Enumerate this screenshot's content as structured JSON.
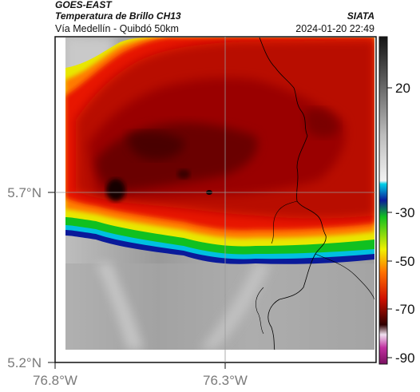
{
  "header": {
    "satellite": "GOES-EAST",
    "product": "Temperatura de Brillo CH13",
    "region": "Vía Medellín - Quibdó 50km",
    "source": "SIATA",
    "timestamp": "2024-01-20 22:49"
  },
  "axes": {
    "lat_ticks": [
      "5.7°N",
      "5.2°N"
    ],
    "lon_ticks": [
      "76.8°W",
      "76.3°W"
    ],
    "gridlines": true
  },
  "colorbar": {
    "ticks": [
      "20",
      "-30",
      "-50",
      "-70",
      "-90"
    ],
    "unit_hint": "°C brightness temperature",
    "colors": {
      "warm_top": "#141414",
      "warm_mid": "#8a8a8a",
      "warm_low": "#f0f0f0",
      "cyan": "#00c8e0",
      "blue": "#0a1a9a",
      "green": "#10c020",
      "yellow": "#f0f000",
      "orange": "#ff7000",
      "red": "#d01000",
      "darkred": "#300000",
      "magenta": "#c030a0"
    }
  },
  "map_colors": {
    "cloud_red": "#b00000",
    "cloud_dark": "#500000",
    "clear_gray": "#a6a6a6",
    "boundary": "#000000"
  }
}
